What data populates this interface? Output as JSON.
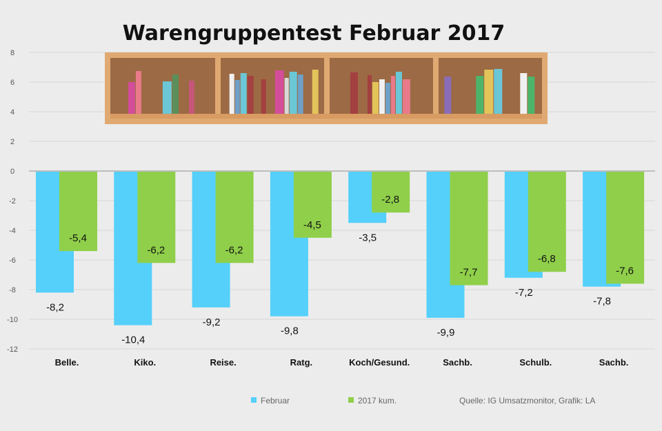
{
  "chart_data": {
    "type": "bar",
    "title": "Warengruppentest Februar 2017",
    "categories": [
      "Belle.",
      "Kiko.",
      "Reise.",
      "Ratg.",
      "Koch/Gesund.",
      "Sachb.",
      "Schulb.",
      "Sachb."
    ],
    "series": [
      {
        "name": "Februar",
        "values": [
          -8.2,
          -10.4,
          -9.2,
          -9.8,
          -3.5,
          -9.9,
          -7.2,
          -7.8
        ],
        "color": "#55d0fa",
        "labels": [
          "-8,2",
          "-10,4",
          "-9,2",
          "-9,8",
          "-3,5",
          "-9,9",
          "-7,2",
          "-7,8"
        ]
      },
      {
        "name": "2017 kum.",
        "values": [
          -5.4,
          -6.2,
          -6.2,
          -4.5,
          -2.8,
          -7.7,
          -6.8,
          -7.6
        ],
        "color": "#8fcf4a",
        "labels": [
          "-5,4",
          "-6,2",
          "-6,2",
          "-4,5",
          "-2,8",
          "-7,7",
          "-6,8",
          "-7,6"
        ]
      }
    ],
    "yticks": [
      8,
      6,
      4,
      2,
      0,
      -2,
      -4,
      -6,
      -8,
      -10,
      -12
    ],
    "ylim": [
      -12,
      8
    ],
    "grid": true,
    "legend_position": "bottom"
  },
  "source": "Quelle: IG Umsatzmonitor, Grafik: LA",
  "decoration": "bookshelf-image"
}
